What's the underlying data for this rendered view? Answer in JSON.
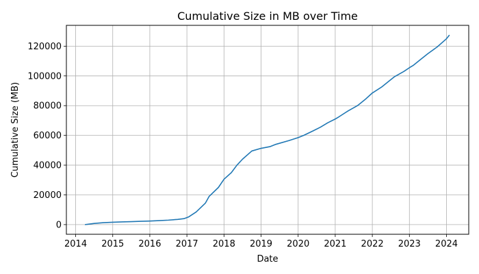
{
  "chart_data": {
    "type": "line",
    "title": "Cumulative Size in MB over Time",
    "xlabel": "Date",
    "ylabel": "Cumulative Size (MB)",
    "xlim": [
      2013.75,
      2024.6
    ],
    "ylim": [
      -6500,
      134000
    ],
    "grid": true,
    "x_ticks": [
      2014,
      2015,
      2016,
      2017,
      2018,
      2019,
      2020,
      2021,
      2022,
      2023,
      2024
    ],
    "y_ticks": [
      0,
      20000,
      40000,
      60000,
      80000,
      100000,
      120000
    ],
    "series": [
      {
        "color": "#1f77b4",
        "points": [
          [
            2014.25,
            0
          ],
          [
            2014.5,
            800
          ],
          [
            2014.75,
            1300
          ],
          [
            2015.0,
            1600
          ],
          [
            2015.25,
            1800
          ],
          [
            2015.5,
            2000
          ],
          [
            2015.75,
            2200
          ],
          [
            2016.0,
            2400
          ],
          [
            2016.25,
            2700
          ],
          [
            2016.5,
            3000
          ],
          [
            2016.75,
            3500
          ],
          [
            2016.92,
            4000
          ],
          [
            2017.05,
            5200
          ],
          [
            2017.25,
            8500
          ],
          [
            2017.5,
            14500
          ],
          [
            2017.6,
            19000
          ],
          [
            2017.85,
            25000
          ],
          [
            2018.0,
            30500
          ],
          [
            2018.2,
            35000
          ],
          [
            2018.35,
            40000
          ],
          [
            2018.5,
            44000
          ],
          [
            2018.75,
            49500
          ],
          [
            2019.0,
            51300
          ],
          [
            2019.25,
            52500
          ],
          [
            2019.4,
            54000
          ],
          [
            2019.75,
            56500
          ],
          [
            2020.0,
            58500
          ],
          [
            2020.15,
            60000
          ],
          [
            2020.4,
            63000
          ],
          [
            2020.6,
            65500
          ],
          [
            2020.8,
            68500
          ],
          [
            2021.0,
            71000
          ],
          [
            2021.1,
            72500
          ],
          [
            2021.35,
            76500
          ],
          [
            2021.6,
            80000
          ],
          [
            2021.8,
            84000
          ],
          [
            2022.0,
            88500
          ],
          [
            2022.25,
            92500
          ],
          [
            2022.45,
            96500
          ],
          [
            2022.6,
            99500
          ],
          [
            2022.85,
            103000
          ],
          [
            2023.0,
            105500
          ],
          [
            2023.1,
            107000
          ],
          [
            2023.3,
            111000
          ],
          [
            2023.5,
            115000
          ],
          [
            2023.75,
            119500
          ],
          [
            2024.0,
            125000
          ],
          [
            2024.08,
            127500
          ]
        ]
      }
    ]
  }
}
